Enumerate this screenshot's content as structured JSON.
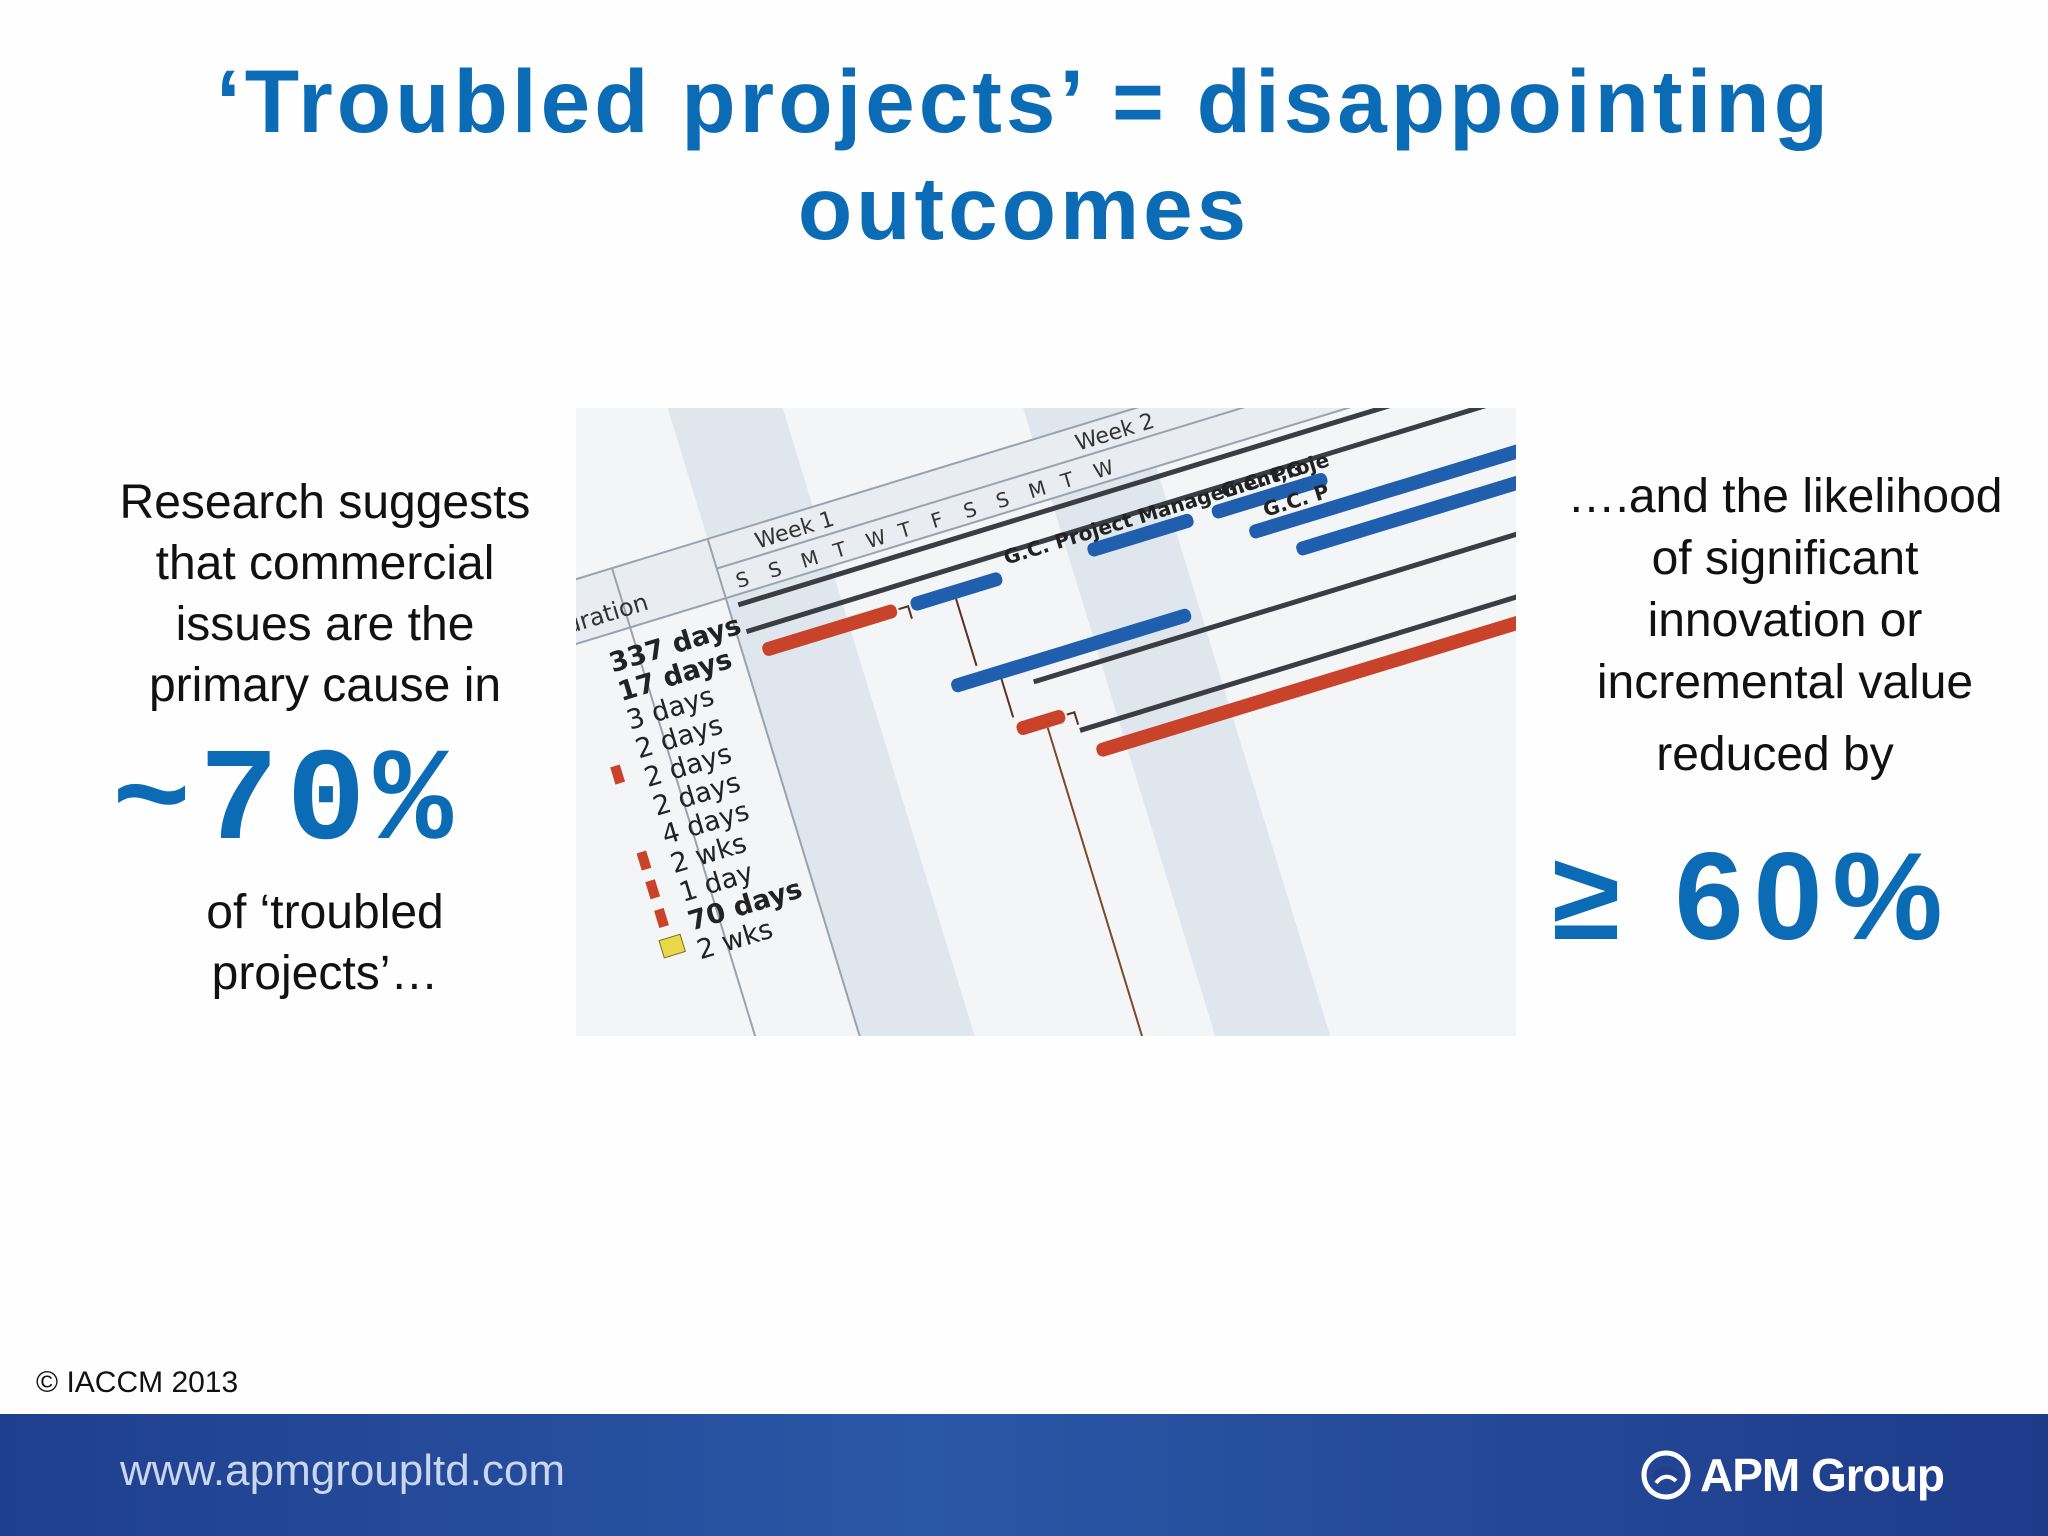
{
  "slide": {
    "title_lines": [
      "‘Troubled projects’ = disappointing",
      "outcomes"
    ],
    "left": {
      "intro_lines": [
        "Research suggests",
        "that commercial",
        "issues are the",
        "primary cause in"
      ],
      "stat": "~70%",
      "outro_lines": [
        "of ‘troubled",
        "projects’…"
      ]
    },
    "right": {
      "intro_lines": [
        "….and the likelihood",
        "of significant",
        "innovation or",
        "incremental value"
      ],
      "reduced": "reduced by",
      "stat": "≥ 60%"
    },
    "photo": {
      "duration_header": "Duration",
      "durations": [
        "337 days",
        "17 days",
        "3 days",
        "2 days",
        "2 days",
        "2 days",
        "4 days",
        "2 wks",
        "1 day",
        "70 days",
        "2 wks"
      ],
      "week1": "Week 1",
      "week2": "Week 2",
      "day_letters": [
        "S",
        "S",
        "M",
        "T",
        "W",
        "T",
        "F",
        "S",
        "S",
        "M",
        "T",
        "W"
      ],
      "task_labels": [
        "G.C. Project Management,G",
        "G.C. Proje",
        "G.C. P"
      ]
    },
    "copyright": "© IACCM 2013",
    "colors": {
      "accent": "#0b6bb5",
      "footer": "#1f3f8e",
      "bar_blue": "#1f5fae",
      "bar_red": "#c8432a"
    }
  },
  "footer": {
    "url": "www.apmgroupltd.com",
    "brand": "APM Group"
  }
}
